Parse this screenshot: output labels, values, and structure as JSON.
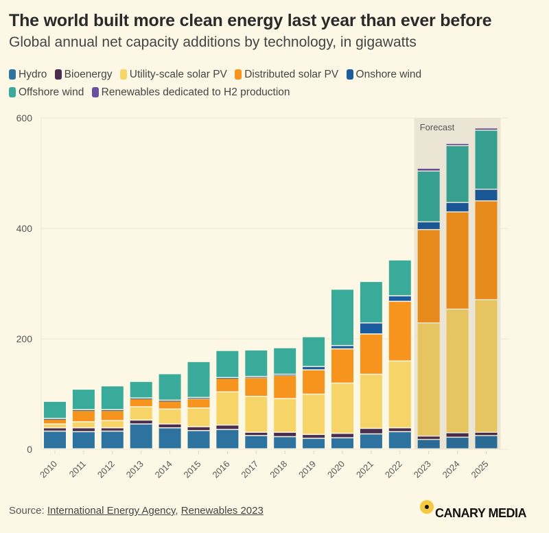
{
  "header": {
    "title": "The world built more clean energy last year than ever before",
    "subtitle": "Global annual net capacity additions by technology, in gigawatts"
  },
  "footer": {
    "source_prefix": "Source: ",
    "source_link_1": "International Energy Agency",
    "source_sep": ", ",
    "source_link_2": "Renewables 2023",
    "logo_text": "CANARY MEDIA"
  },
  "chart_data": {
    "type": "bar",
    "stacked": true,
    "title": "The world built more clean energy last year than ever before",
    "subtitle": "Global annual net capacity additions by technology, in gigawatts",
    "ylim": [
      0,
      600
    ],
    "yticks": [
      0,
      200,
      400,
      600
    ],
    "grid": true,
    "legend_position": "top",
    "annotation": "Forecast",
    "forecast_categories": [
      "2023",
      "2024",
      "2025"
    ],
    "categories": [
      "2010",
      "2011",
      "2012",
      "2013",
      "2014",
      "2015",
      "2016",
      "2017",
      "2018",
      "2019",
      "2020",
      "2021",
      "2022",
      "2023",
      "2024",
      "2025"
    ],
    "series": [
      {
        "name": "Hydro",
        "color": "#2e72a0",
        "values": [
          32,
          31,
          32,
          45,
          38,
          33,
          35,
          24,
          22,
          19,
          20,
          27,
          31,
          17,
          21,
          24
        ]
      },
      {
        "name": "Bioenergy",
        "color": "#4b2d4f",
        "values": [
          6,
          7,
          6,
          7,
          7,
          7,
          8,
          6,
          8,
          7,
          8,
          10,
          7,
          6,
          8,
          6
        ]
      },
      {
        "name": "Utility-scale solar PV",
        "color": "#f7d468",
        "values": [
          7,
          11,
          13,
          24,
          27,
          34,
          60,
          65,
          61,
          73,
          91,
          98,
          121,
          205,
          224,
          240
        ]
      },
      {
        "name": "Distributed solar PV",
        "color": "#f7941d",
        "values": [
          9,
          21,
          19,
          15,
          15,
          17,
          25,
          34,
          42,
          44,
          62,
          73,
          108,
          169,
          176,
          179
        ]
      },
      {
        "name": "Onshore wind",
        "color": "#1b5c9e",
        "values": [
          1,
          1,
          1,
          1,
          1,
          2,
          1,
          2,
          2,
          6,
          6,
          20,
          10,
          14,
          17,
          21
        ]
      },
      {
        "name": "Offshore wind",
        "color": "#3aab9b",
        "values": [
          31,
          37,
          43,
          30,
          48,
          65,
          49,
          48,
          48,
          54,
          102,
          75,
          65,
          92,
          103,
          107
        ]
      },
      {
        "name": "Renewables dedicated to H2 production",
        "color": "#6a4f9c",
        "values": [
          0,
          0,
          0,
          0,
          0,
          0,
          0,
          0,
          0,
          0,
          0,
          0,
          0,
          5,
          4,
          4
        ]
      }
    ]
  }
}
